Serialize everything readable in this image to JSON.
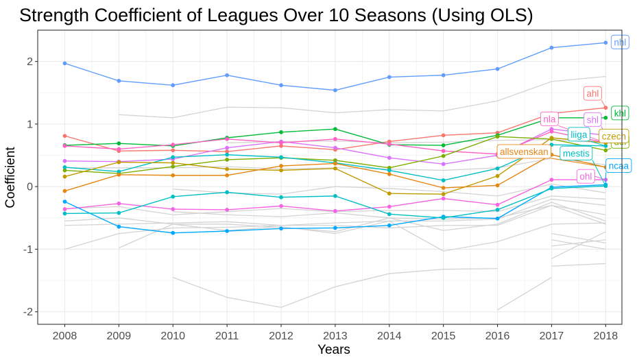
{
  "chart_data": {
    "type": "line",
    "title": "Strength Coefficient of Leagues Over 10 Seasons (Using OLS)",
    "xlabel": "Years",
    "ylabel": "Coefficient",
    "x": [
      2008,
      2009,
      2010,
      2011,
      2012,
      2013,
      2014,
      2015,
      2016,
      2017,
      2018
    ],
    "x_tick_labels": [
      "2008",
      "2009",
      "2010",
      "2011",
      "2012",
      "2013",
      "2014",
      "2015",
      "2016",
      "2017",
      "2018"
    ],
    "y_ticks": [
      -2,
      -1,
      0,
      1,
      2
    ],
    "y_tick_labels": [
      "-2",
      "-1",
      "0",
      "1",
      "2"
    ],
    "xlim": [
      2007.5,
      2018.3
    ],
    "ylim": [
      -2.2,
      2.5
    ],
    "grid": true,
    "legend": "direct labels at right end of lines",
    "series": [
      {
        "name": "nhl",
        "color": "#619CFF",
        "values": [
          1.97,
          1.69,
          1.62,
          1.78,
          1.62,
          1.54,
          1.75,
          1.78,
          1.88,
          2.22,
          2.3
        ]
      },
      {
        "name": "ahl",
        "color": "#F8766D",
        "values": [
          0.81,
          0.57,
          0.58,
          0.56,
          0.65,
          0.59,
          0.72,
          0.82,
          0.86,
          1.17,
          1.26
        ]
      },
      {
        "name": "khl",
        "color": "#00BA38",
        "values": [
          0.66,
          0.69,
          0.65,
          0.78,
          0.87,
          0.92,
          0.67,
          0.66,
          0.82,
          1.1,
          1.1
        ]
      },
      {
        "name": "shl",
        "color": "#DB72FB",
        "values": [
          0.41,
          0.4,
          0.44,
          0.62,
          0.72,
          0.62,
          0.46,
          0.36,
          0.5,
          0.92,
          0.82
        ]
      },
      {
        "name": "nla",
        "color": "#FF61C3",
        "values": [
          0.65,
          0.6,
          0.67,
          0.76,
          0.7,
          0.76,
          0.68,
          0.57,
          0.52,
          0.88,
          0.7
        ]
      },
      {
        "name": "del",
        "color": "#7CAE00",
        "values": [
          0.26,
          0.21,
          0.32,
          0.43,
          0.46,
          0.42,
          0.3,
          0.49,
          0.8,
          0.76,
          0.58
        ]
      },
      {
        "name": "liiga",
        "color": "#00BFC4",
        "values": [
          0.31,
          0.24,
          0.47,
          0.51,
          0.47,
          0.38,
          0.26,
          0.1,
          0.29,
          0.67,
          0.65
        ]
      },
      {
        "name": "czech",
        "color": "#C09B00",
        "values": [
          0.16,
          0.39,
          0.38,
          0.28,
          0.26,
          0.29,
          -0.11,
          -0.12,
          0.17,
          0.78,
          0.7
        ]
      },
      {
        "name": "allsvenskan",
        "color": "#E68613",
        "values": [
          -0.07,
          0.19,
          0.18,
          0.18,
          0.33,
          0.37,
          0.2,
          -0.02,
          0.02,
          0.51,
          0.31
        ]
      },
      {
        "name": "ohl",
        "color": "#F564E3",
        "values": [
          -0.36,
          -0.27,
          -0.36,
          -0.37,
          -0.31,
          -0.39,
          -0.32,
          -0.19,
          -0.29,
          0.11,
          0.11
        ]
      },
      {
        "name": "ncaa",
        "color": "#00A9FF",
        "values": [
          -0.24,
          -0.64,
          -0.74,
          -0.71,
          -0.67,
          -0.66,
          -0.62,
          -0.48,
          -0.51,
          -0.01,
          0.03
        ]
      },
      {
        "name": "mestis",
        "color": "#00BFC4",
        "values": [
          -0.43,
          -0.42,
          -0.16,
          -0.09,
          -0.17,
          -0.15,
          -0.44,
          -0.5,
          -0.37,
          -0.03,
          0.01
        ]
      }
    ],
    "background_series": [
      {
        "values": [
          null,
          1.15,
          1.1,
          1.27,
          1.26,
          1.18,
          1.23,
          1.21,
          1.37,
          1.68,
          1.76
        ]
      },
      {
        "values": [
          null,
          null,
          null,
          0.7,
          0.72,
          0.73,
          0.7,
          0.71,
          0.74,
          0.75,
          0.7
        ]
      },
      {
        "values": [
          0.3,
          0.3,
          0.3,
          0.32,
          0.28,
          0.3,
          0.28,
          0.26,
          0.3,
          0.45,
          0.35
        ]
      },
      {
        "values": [
          null,
          null,
          -0.04,
          -0.1,
          -0.12,
          0.0,
          -0.03,
          -0.08,
          -0.15,
          0.04,
          -0.1
        ]
      },
      {
        "values": [
          -0.35,
          -0.32,
          -0.45,
          -0.4,
          -0.35,
          -0.4,
          -0.38,
          -0.38,
          -0.4,
          -0.15,
          -0.2
        ]
      },
      {
        "values": [
          -0.62,
          -0.6,
          -0.58,
          -0.56,
          -0.62,
          -0.58,
          -0.55,
          -0.55,
          -0.52,
          -0.2,
          -0.3
        ]
      },
      {
        "values": [
          -0.55,
          -0.5,
          -0.6,
          -0.6,
          -0.65,
          -0.72,
          -0.5,
          -0.7,
          -0.6,
          -0.25,
          -0.55
        ]
      },
      {
        "values": [
          -1.0,
          -0.75,
          -0.66,
          -0.65,
          -0.62,
          -0.62,
          -0.66,
          -0.62,
          -0.62,
          -0.3,
          -0.6
        ]
      },
      {
        "values": [
          null,
          -0.98,
          -0.6,
          -0.7,
          -0.64,
          -0.75,
          -0.55,
          -1.03,
          -0.88,
          -0.6,
          -0.58
        ]
      },
      {
        "values": [
          null,
          null,
          -0.4,
          -0.45,
          -0.48,
          -0.42,
          -0.5,
          -0.52,
          -0.5,
          -0.3,
          -0.45
        ]
      },
      {
        "values": [
          null,
          null,
          null,
          null,
          null,
          null,
          null,
          null,
          null,
          -0.75,
          -0.9
        ]
      },
      {
        "values": [
          null,
          null,
          null,
          null,
          null,
          null,
          null,
          null,
          null,
          -0.85,
          -1.0
        ]
      },
      {
        "values": [
          null,
          null,
          null,
          null,
          null,
          null,
          null,
          null,
          null,
          -0.95,
          -0.85
        ]
      },
      {
        "values": [
          null,
          null,
          null,
          null,
          null,
          null,
          null,
          null,
          null,
          -1.15,
          -0.72
        ]
      },
      {
        "values": [
          null,
          null,
          null,
          null,
          null,
          null,
          null,
          null,
          null,
          -1.27,
          -1.23
        ]
      },
      {
        "values": [
          null,
          null,
          -1.45,
          -1.77,
          -1.93,
          -1.6,
          -1.39,
          -1.32,
          -1.31,
          null,
          null
        ]
      },
      {
        "values": [
          null,
          null,
          null,
          null,
          null,
          null,
          null,
          null,
          -1.97,
          -1.45,
          null
        ]
      }
    ],
    "background_color": "#d3d3d3",
    "end_labels": [
      "nhl",
      "ahl",
      "khl",
      "nla",
      "shl",
      "del",
      "liiga",
      "czech",
      "allsvenskan",
      "ohl",
      "ncaa",
      "mestis"
    ]
  }
}
